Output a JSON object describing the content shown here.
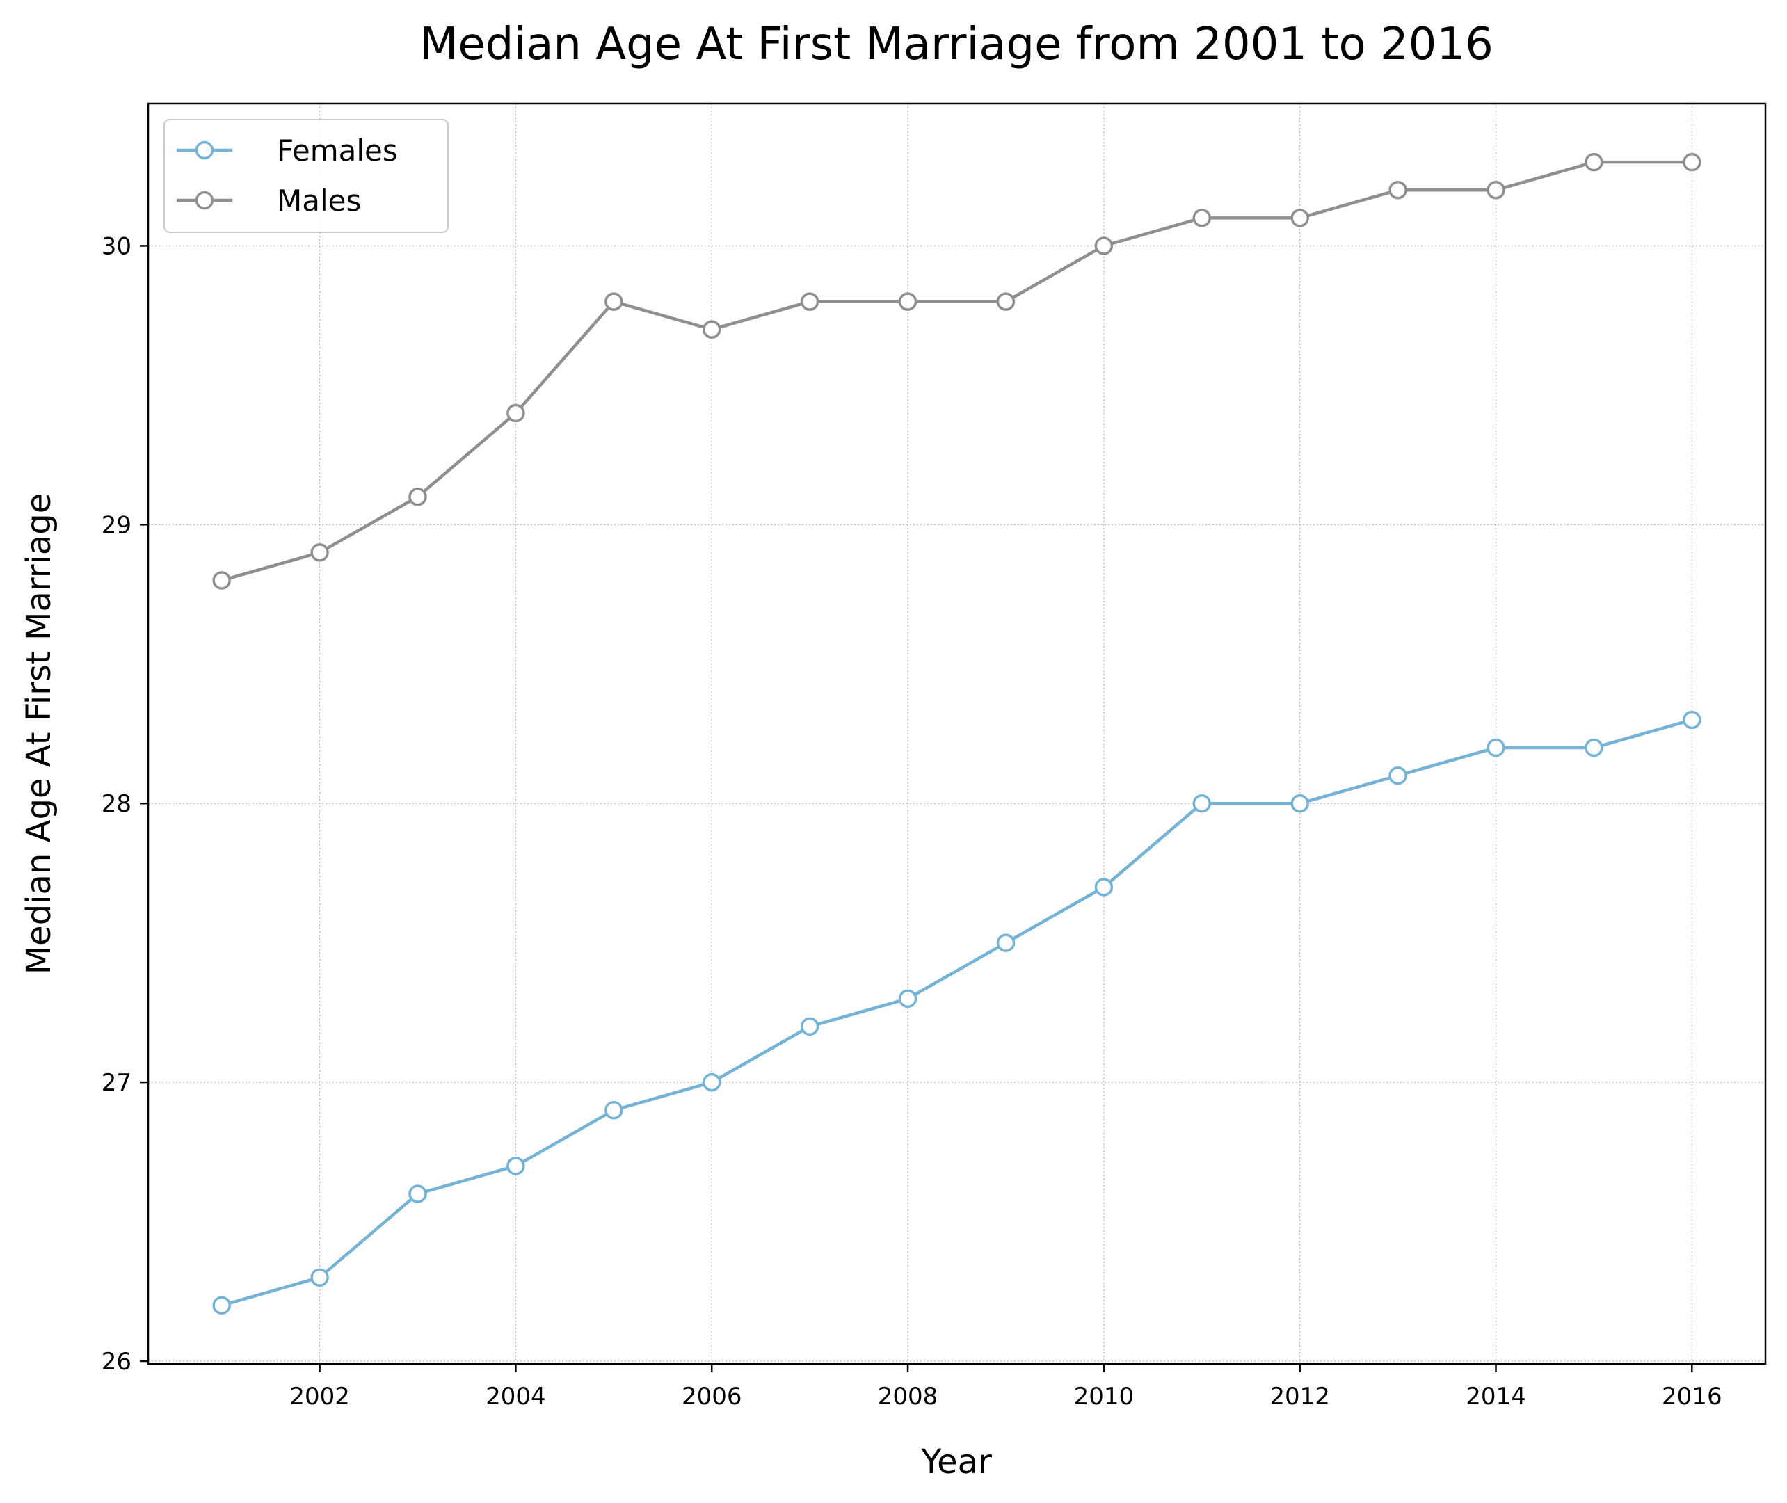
{
  "chart_data": {
    "type": "line",
    "title": "Median Age At First Marriage from 2001 to 2016",
    "xlabel": "Year",
    "ylabel": "Median Age At First Marriage",
    "x": [
      2001,
      2002,
      2003,
      2004,
      2005,
      2006,
      2007,
      2008,
      2009,
      2010,
      2011,
      2012,
      2013,
      2014,
      2015,
      2016
    ],
    "xlim": [
      2000.25,
      2016.75
    ],
    "ylim": [
      25.99,
      30.51
    ],
    "xticks": [
      2002,
      2004,
      2006,
      2008,
      2010,
      2012,
      2014,
      2016
    ],
    "yticks": [
      26,
      27,
      28,
      29,
      30
    ],
    "grid": true,
    "legend": "top-left",
    "series": [
      {
        "name": "Females",
        "color": "#74b3d6",
        "marker": "circle-open",
        "values": [
          26.2,
          26.3,
          26.6,
          26.7,
          26.9,
          27.0,
          27.2,
          27.3,
          27.5,
          27.7,
          28.0,
          28.0,
          28.1,
          28.2,
          28.2,
          28.3
        ]
      },
      {
        "name": "Males",
        "color": "#8f8f8f",
        "marker": "circle-open",
        "values": [
          28.8,
          28.9,
          29.1,
          29.4,
          29.8,
          29.7,
          29.8,
          29.8,
          29.8,
          30.0,
          30.1,
          30.1,
          30.2,
          30.2,
          30.3,
          30.3
        ]
      }
    ]
  }
}
